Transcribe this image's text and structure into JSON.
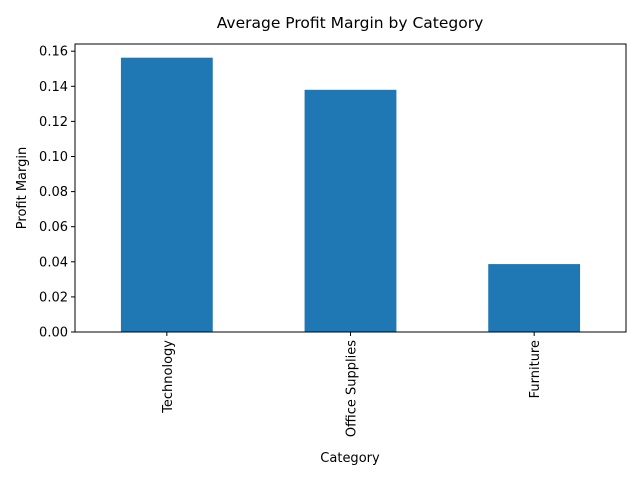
{
  "chart_data": {
    "type": "bar",
    "title": "Average Profit Margin by Category",
    "xlabel": "Category",
    "ylabel": "Profit Margin",
    "categories": [
      "Technology",
      "Office Supplies",
      "Furniture"
    ],
    "values": [
      0.1563,
      0.138,
      0.0387
    ],
    "ylim": [
      0,
      0.1641
    ],
    "yticks": [
      0.0,
      0.02,
      0.04,
      0.06,
      0.08,
      0.1,
      0.12,
      0.14,
      0.16
    ],
    "ytick_labels": [
      "0.00",
      "0.02",
      "0.04",
      "0.06",
      "0.08",
      "0.10",
      "0.12",
      "0.14",
      "0.16"
    ],
    "bar_color": "#1f77b4",
    "grid": false,
    "legend": false
  }
}
